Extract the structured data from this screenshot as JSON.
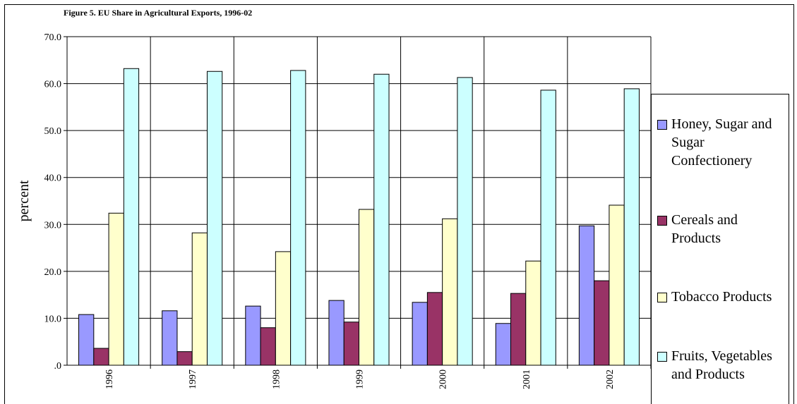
{
  "chart_data": {
    "type": "bar",
    "title": "Figure 5. EU Share in Agricultural Exports, 1996-02",
    "y_label": "percent",
    "categories": [
      "1996",
      "1997",
      "1998",
      "1999",
      "2000",
      "2001",
      "2002"
    ],
    "series": [
      {
        "name": "Honey, Sugar and Sugar Confectionery",
        "color": "#9999ff",
        "values": [
          10.8,
          11.6,
          12.6,
          13.8,
          13.4,
          8.9,
          29.7
        ]
      },
      {
        "name": "Cereals and Products",
        "color": "#993366",
        "values": [
          3.6,
          2.9,
          8.0,
          9.2,
          15.5,
          15.3,
          18.0
        ]
      },
      {
        "name": "Tobacco Products",
        "color": "#ffffcc",
        "values": [
          32.4,
          28.2,
          24.2,
          33.2,
          31.2,
          22.2,
          34.1
        ]
      },
      {
        "name": "Fruits, Vegetables and Products",
        "color": "#ccffff",
        "values": [
          63.2,
          62.6,
          62.8,
          62.0,
          61.3,
          58.6,
          58.9
        ]
      }
    ],
    "ylim": [
      0,
      70
    ],
    "yticks": [
      {
        "value": 0,
        "label": ".0"
      },
      {
        "value": 10,
        "label": "10.0"
      },
      {
        "value": 20,
        "label": "20.0"
      },
      {
        "value": 30,
        "label": "30.0"
      },
      {
        "value": 40,
        "label": "40.0"
      },
      {
        "value": 50,
        "label": "50.0"
      },
      {
        "value": 60,
        "label": "60.0"
      },
      {
        "value": 70,
        "label": "70.0"
      }
    ],
    "grid": true,
    "legend": "right"
  }
}
